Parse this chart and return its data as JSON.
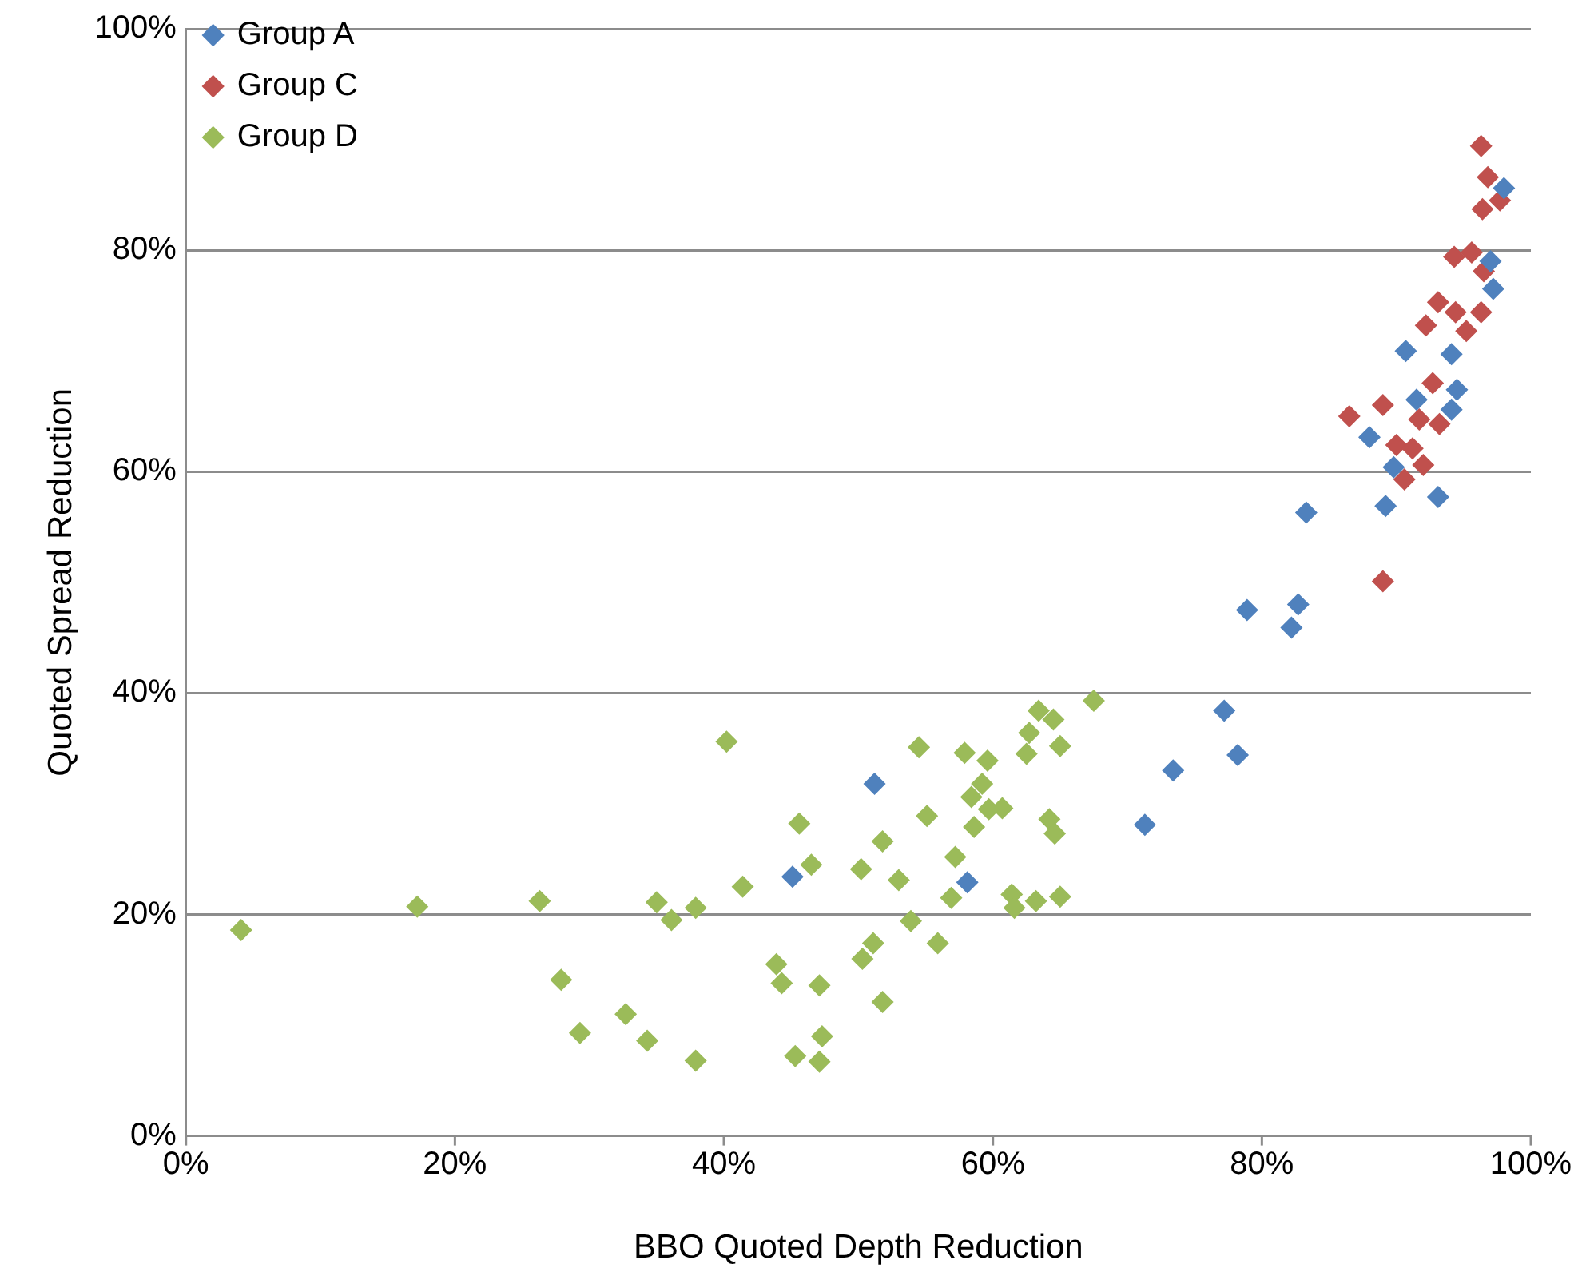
{
  "chart_data": {
    "type": "scatter",
    "xlabel": "BBO Quoted Depth Reduction",
    "ylabel": "Quoted Spread Reduction",
    "xlim": [
      0,
      100
    ],
    "ylim": [
      0,
      100
    ],
    "xticks": [
      {
        "value": 0,
        "label": "0%"
      },
      {
        "value": 20,
        "label": "20%"
      },
      {
        "value": 40,
        "label": "40%"
      },
      {
        "value": 60,
        "label": "60%"
      },
      {
        "value": 80,
        "label": "80%"
      },
      {
        "value": 100,
        "label": "100%"
      }
    ],
    "yticks": [
      {
        "value": 0,
        "label": "0%"
      },
      {
        "value": 20,
        "label": "20%"
      },
      {
        "value": 40,
        "label": "40%"
      },
      {
        "value": 60,
        "label": "60%"
      },
      {
        "value": 80,
        "label": "80%"
      },
      {
        "value": 100,
        "label": "100%"
      }
    ],
    "grid": "y",
    "legend": "top left",
    "marker": "diamond",
    "series": [
      {
        "name": "Group A",
        "color": "#4f81bd",
        "x": [
          51.2,
          45.1,
          58.1,
          71.3,
          73.4,
          77.2,
          78.2,
          78.9,
          82.2,
          82.7,
          83.3,
          89.2,
          93.1,
          88.0,
          89.8,
          90.7,
          94.1,
          94.5,
          94.1,
          91.5,
          97.0,
          98.0,
          97.2
        ],
        "values": [
          31.8,
          23.4,
          22.9,
          28.1,
          33.0,
          38.4,
          34.4,
          47.5,
          45.9,
          48.0,
          56.3,
          56.9,
          57.7,
          63.1,
          60.4,
          70.9,
          70.6,
          67.4,
          65.6,
          66.5,
          79.0,
          85.6,
          76.5
        ]
      },
      {
        "name": "Group C",
        "color": "#c0504d",
        "x": [
          96.3,
          96.8,
          97.7,
          96.4,
          95.6,
          94.3,
          96.5,
          93.1,
          94.4,
          96.3,
          95.2,
          92.2,
          92.7,
          89.0,
          86.5,
          91.7,
          93.2,
          90.0,
          91.2,
          92.0,
          90.6,
          89.0
        ],
        "values": [
          89.4,
          86.6,
          84.5,
          83.7,
          79.8,
          79.4,
          78.1,
          75.3,
          74.4,
          74.4,
          72.7,
          73.2,
          68.0,
          66.0,
          65.0,
          64.7,
          64.3,
          62.4,
          62.1,
          60.6,
          59.3,
          50.1
        ]
      },
      {
        "name": "Group D",
        "color": "#9bbb59",
        "x": [
          67.5,
          63.4,
          64.5,
          62.7,
          62.5,
          65.0,
          40.2,
          54.5,
          57.9,
          59.6,
          59.2,
          58.4,
          60.7,
          59.7,
          55.1,
          45.6,
          58.6,
          64.2,
          64.6,
          51.8,
          46.5,
          50.2,
          57.2,
          53.0,
          41.4,
          56.9,
          61.4,
          61.6,
          63.2,
          65.0,
          35.0,
          36.1,
          37.9,
          53.9,
          55.9,
          51.1,
          50.3,
          43.9,
          44.3,
          47.1,
          51.8,
          34.3,
          37.9,
          47.3,
          45.3,
          47.1,
          4.1,
          17.2,
          26.3,
          27.9,
          32.7,
          29.3
        ],
        "values": [
          39.3,
          38.4,
          37.6,
          36.4,
          34.5,
          35.2,
          35.6,
          35.1,
          34.6,
          33.9,
          31.8,
          30.6,
          29.6,
          29.5,
          28.9,
          28.2,
          27.9,
          28.6,
          27.3,
          26.6,
          24.5,
          24.1,
          25.2,
          23.1,
          22.5,
          21.5,
          21.8,
          20.6,
          21.2,
          21.6,
          21.1,
          19.5,
          20.6,
          19.4,
          17.4,
          17.4,
          16.0,
          15.5,
          13.8,
          13.6,
          12.1,
          8.6,
          6.8,
          9.0,
          7.2,
          6.7,
          18.6,
          20.7,
          21.2,
          14.1,
          11.0,
          9.3
        ]
      }
    ]
  }
}
